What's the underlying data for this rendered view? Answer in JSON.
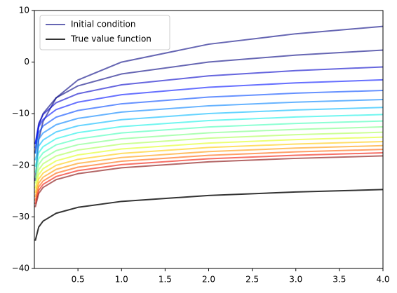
{
  "chart_data": {
    "type": "line",
    "x": [
      0.01,
      0.05,
      0.1,
      0.25,
      0.5,
      1,
      2,
      3,
      4
    ],
    "xlim": [
      0,
      4
    ],
    "xticks": [
      {
        "value": 0.5,
        "label": "0.5"
      },
      {
        "value": 1,
        "label": "1.0"
      },
      {
        "value": 1.5,
        "label": "1.5"
      },
      {
        "value": 2,
        "label": "2.0"
      },
      {
        "value": 2.5,
        "label": "2.5"
      },
      {
        "value": 3,
        "label": "3.0"
      },
      {
        "value": 3.5,
        "label": "3.5"
      },
      {
        "value": 4,
        "label": "4.0"
      }
    ],
    "ylim": [
      -40,
      10
    ],
    "yticks": [
      {
        "value": -40,
        "label": "−40"
      },
      {
        "value": -30,
        "label": "−30"
      },
      {
        "value": -20,
        "label": "−20"
      },
      {
        "value": -10,
        "label": "−10"
      },
      0,
      10
    ],
    "legend": "upper left",
    "series": [
      {
        "name": "Initial condition",
        "color": "#000080",
        "alpha": 0.6,
        "width": 2,
        "values": [
          -23.03,
          -14.98,
          -11.51,
          -6.93,
          -3.47,
          0,
          3.47,
          5.49,
          6.93
        ]
      },
      {
        "color": "#000080",
        "alpha": 0.6,
        "width": 2,
        "values": [
          -17.63,
          -12.28,
          -9.97,
          -6.92,
          -4.61,
          -2.3,
          0.01,
          1.36,
          2.32
        ]
      },
      {
        "color": "#0000c8",
        "alpha": 0.6,
        "width": 2,
        "values": [
          -15.91,
          -11.89,
          -10.16,
          -7.87,
          -6.13,
          -4.4,
          -2.67,
          -1.65,
          -0.93
        ]
      },
      {
        "color": "#0010ff",
        "alpha": 0.6,
        "width": 2,
        "values": [
          -15.9,
          -12.55,
          -11.11,
          -9.2,
          -7.76,
          -6.32,
          -4.88,
          -4.03,
          -3.44
        ]
      },
      {
        "color": "#0048ff",
        "alpha": 0.6,
        "width": 2,
        "values": [
          -16.69,
          -13.68,
          -12.39,
          -10.67,
          -9.38,
          -8.08,
          -6.78,
          -6.02,
          -5.49
        ]
      },
      {
        "color": "#0080ff",
        "alpha": 0.6,
        "width": 2,
        "values": [
          -17.79,
          -14.96,
          -13.74,
          -12.13,
          -10.91,
          -9.69,
          -8.47,
          -7.76,
          -7.25
        ]
      },
      {
        "color": "#00b8ff",
        "alpha": 0.6,
        "width": 2,
        "values": [
          -19.03,
          -16.28,
          -15.1,
          -13.53,
          -12.35,
          -11.16,
          -9.97,
          -9.28,
          -8.79
        ]
      },
      {
        "color": "#10f0e6",
        "alpha": 0.6,
        "width": 2,
        "values": [
          -20.28,
          -17.56,
          -16.39,
          -14.84,
          -13.67,
          -12.5,
          -11.33,
          -10.64,
          -10.16
        ]
      },
      {
        "color": "#40ffb6",
        "alpha": 0.6,
        "width": 2,
        "values": [
          -21.42,
          -18.73,
          -17.58,
          -16.04,
          -14.89,
          -13.73,
          -12.57,
          -11.89,
          -11.42
        ]
      },
      {
        "color": "#76ff80",
        "alpha": 0.6,
        "width": 2,
        "values": [
          -22.5,
          -19.83,
          -18.68,
          -17.16,
          -16.01,
          -14.86,
          -13.71,
          -13.04,
          -12.56
        ]
      },
      {
        "color": "#aaff4d",
        "alpha": 0.6,
        "width": 2,
        "values": [
          -23.53,
          -20.86,
          -19.71,
          -18.19,
          -17.04,
          -15.89,
          -14.74,
          -14.07,
          -13.59
        ]
      },
      {
        "color": "#e0ff16",
        "alpha": 0.6,
        "width": 2,
        "values": [
          -24.48,
          -21.81,
          -20.66,
          -19.14,
          -17.99,
          -16.84,
          -15.69,
          -15.02,
          -14.54
        ]
      },
      {
        "color": "#ffc800",
        "alpha": 0.6,
        "width": 2,
        "values": [
          -25.34,
          -22.67,
          -21.52,
          -20.0,
          -18.85,
          -17.7,
          -16.55,
          -15.88,
          -15.4
        ]
      },
      {
        "color": "#ff9400",
        "alpha": 0.6,
        "width": 2,
        "values": [
          -26.13,
          -23.46,
          -22.31,
          -20.79,
          -19.64,
          -18.49,
          -17.34,
          -16.67,
          -16.19
        ]
      },
      {
        "color": "#ff5e00",
        "alpha": 0.6,
        "width": 2,
        "values": [
          -26.86,
          -24.19,
          -23.04,
          -21.52,
          -20.37,
          -19.22,
          -18.07,
          -17.4,
          -16.92
        ]
      },
      {
        "color": "#f01000",
        "alpha": 0.6,
        "width": 2,
        "values": [
          -27.52,
          -24.85,
          -23.7,
          -22.18,
          -21.03,
          -19.88,
          -18.73,
          -18.06,
          -17.58
        ]
      },
      {
        "color": "#800000",
        "alpha": 0.6,
        "width": 2,
        "values": [
          -28.12,
          -25.45,
          -24.3,
          -22.78,
          -21.63,
          -20.48,
          -19.33,
          -18.66,
          -18.18
        ]
      },
      {
        "name": "True value function",
        "color": "#000000",
        "alpha": 0.8,
        "width": 2,
        "values": [
          -34.64,
          -31.97,
          -30.82,
          -29.3,
          -28.15,
          -27.0,
          -25.85,
          -25.18,
          -24.7
        ]
      }
    ]
  }
}
